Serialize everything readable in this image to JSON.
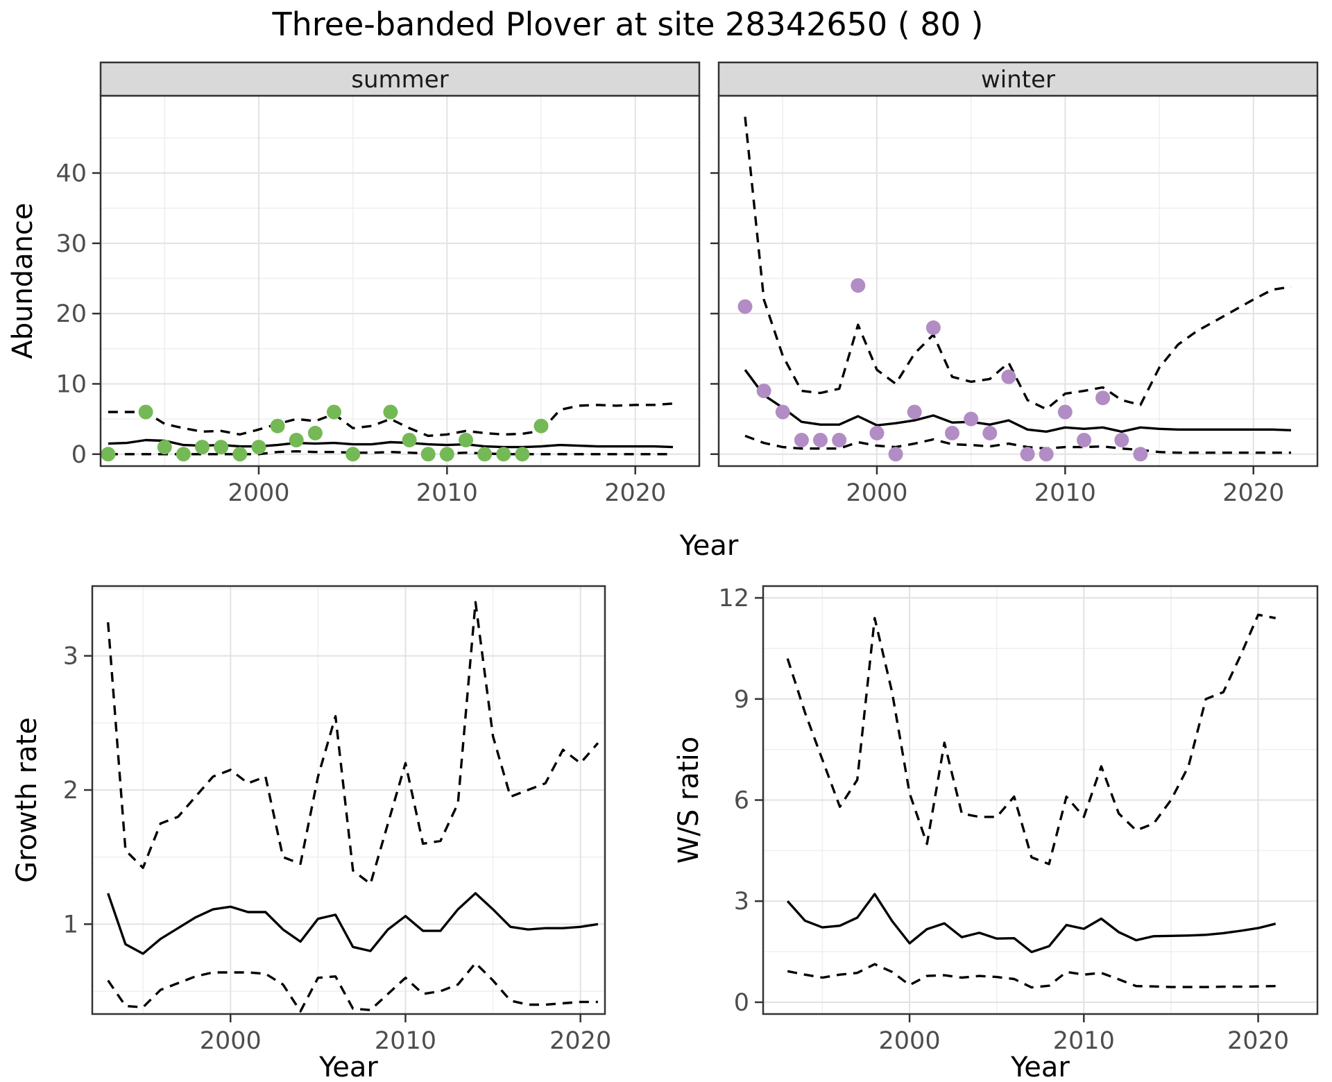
{
  "title": "Three-banded Plover at site 28342650 ( 80 )",
  "axes": {
    "y_top": "Abundance",
    "x_top": "Year",
    "y_growth": "Growth rate",
    "x_growth": "Year",
    "y_ws": "W/S ratio",
    "x_ws": "Year"
  },
  "facets": {
    "summer": "summer",
    "winter": "winter"
  },
  "colors": {
    "summer_point": "#74B956",
    "winter_point": "#B28CC4",
    "line": "#000000",
    "strip_fill": "#D9D9D9",
    "panel_border": "#333333",
    "grid_major": "#E2E2E2",
    "grid_minor": "#EFEFEF",
    "tick_label": "#4D4D4D",
    "tick_mark": "#333333"
  },
  "chart_data": [
    {
      "type": "line",
      "panel": "summer",
      "facet_label": "summer",
      "title": "",
      "xlabel": "Year",
      "ylabel": "Abundance",
      "xlim": [
        1991.6,
        2023.4
      ],
      "ylim": [
        -1.7,
        51.0
      ],
      "xticks": [
        2000,
        2010,
        2020
      ],
      "xticks_minor": [
        1995,
        2005,
        2015
      ],
      "yticks": [
        0,
        10,
        20,
        30,
        40
      ],
      "yticks_minor": [
        5,
        15,
        25,
        35,
        45
      ],
      "x": [
        1992,
        1993,
        1994,
        1995,
        1996,
        1997,
        1998,
        1999,
        2000,
        2001,
        2002,
        2003,
        2004,
        2005,
        2006,
        2007,
        2008,
        2009,
        2010,
        2011,
        2012,
        2013,
        2014,
        2015,
        2016,
        2017,
        2018,
        2019,
        2020,
        2021,
        2022
      ],
      "series": [
        {
          "name": "median",
          "style": "solid",
          "values": [
            1.5,
            1.6,
            2.0,
            1.9,
            1.3,
            1.2,
            1.3,
            1.1,
            1.1,
            1.3,
            1.6,
            1.5,
            1.6,
            1.4,
            1.4,
            1.7,
            1.6,
            1.4,
            1.3,
            1.4,
            1.1,
            1.0,
            1.0,
            1.1,
            1.3,
            1.2,
            1.1,
            1.1,
            1.1,
            1.1,
            1.0
          ]
        },
        {
          "name": "upper95",
          "style": "dashed",
          "values": [
            6.0,
            6.0,
            6.0,
            4.3,
            3.7,
            3.2,
            3.3,
            2.8,
            3.5,
            4.3,
            5.0,
            4.7,
            5.7,
            3.7,
            4.0,
            5.0,
            3.7,
            2.6,
            2.8,
            3.3,
            3.0,
            2.8,
            2.9,
            3.3,
            6.3,
            6.9,
            7.0,
            6.9,
            7.0,
            7.0,
            7.2
          ]
        },
        {
          "name": "lower95",
          "style": "dashed",
          "values": [
            0,
            0,
            0,
            0,
            0,
            0,
            0,
            0,
            0,
            0.3,
            0.4,
            0.3,
            0.3,
            0.2,
            0.2,
            0.3,
            0.2,
            0.1,
            0.1,
            0.2,
            0.1,
            0,
            0,
            0,
            0,
            0,
            0,
            0,
            0,
            0,
            0
          ]
        }
      ],
      "points": {
        "name": "observed counts (summer)",
        "color_key": "summer_point",
        "xy": [
          [
            1992,
            0
          ],
          [
            1994,
            6
          ],
          [
            1995,
            1
          ],
          [
            1996,
            0
          ],
          [
            1997,
            1
          ],
          [
            1998,
            1
          ],
          [
            1999,
            0
          ],
          [
            2000,
            1
          ],
          [
            2001,
            4
          ],
          [
            2002,
            2
          ],
          [
            2003,
            3
          ],
          [
            2004,
            6
          ],
          [
            2005,
            0
          ],
          [
            2007,
            6
          ],
          [
            2008,
            2
          ],
          [
            2009,
            0
          ],
          [
            2010,
            0
          ],
          [
            2011,
            2
          ],
          [
            2012,
            0
          ],
          [
            2013,
            0
          ],
          [
            2014,
            0
          ],
          [
            2015,
            4
          ]
        ]
      }
    },
    {
      "type": "line",
      "panel": "winter",
      "facet_label": "winter",
      "title": "",
      "xlabel": "Year",
      "ylabel": "Abundance",
      "xlim": [
        1991.6,
        2023.4
      ],
      "ylim": [
        -1.7,
        51.0
      ],
      "xticks": [
        2000,
        2010,
        2020
      ],
      "xticks_minor": [
        1995,
        2005,
        2015
      ],
      "yticks": [
        0,
        10,
        20,
        30,
        40
      ],
      "yticks_minor": [
        5,
        15,
        25,
        35,
        45
      ],
      "x": [
        1993,
        1994,
        1995,
        1996,
        1997,
        1998,
        1999,
        2000,
        2001,
        2002,
        2003,
        2004,
        2005,
        2006,
        2007,
        2008,
        2009,
        2010,
        2011,
        2012,
        2013,
        2014,
        2015,
        2016,
        2017,
        2018,
        2019,
        2020,
        2021,
        2022
      ],
      "series": [
        {
          "name": "median",
          "style": "solid",
          "values": [
            12,
            8.4,
            6.6,
            4.6,
            4.2,
            4.2,
            5.4,
            4.1,
            4.4,
            4.8,
            5.5,
            4.5,
            4.6,
            4.2,
            4.8,
            3.5,
            3.2,
            3.8,
            3.6,
            3.8,
            3.2,
            3.8,
            3.6,
            3.5,
            3.5,
            3.5,
            3.5,
            3.5,
            3.5,
            3.4
          ]
        },
        {
          "name": "upper95",
          "style": "dashed",
          "values": [
            48,
            22,
            14,
            9,
            8.7,
            9.3,
            18.4,
            12,
            10,
            14.3,
            17,
            11,
            10.3,
            10.7,
            13,
            7.7,
            6.4,
            8.6,
            9,
            9.5,
            7.7,
            7,
            12.3,
            15.6,
            17.5,
            19,
            20.5,
            22,
            23.4,
            23.8
          ]
        },
        {
          "name": "lower95",
          "style": "dashed",
          "values": [
            2.6,
            1.6,
            1.0,
            0.8,
            0.8,
            0.8,
            1.7,
            1.2,
            1.0,
            1.5,
            2.1,
            1.4,
            1.3,
            1.1,
            1.5,
            1.0,
            0.8,
            1.0,
            1.0,
            1.1,
            0.8,
            0.6,
            0.3,
            0.2,
            0.2,
            0.2,
            0.2,
            0.2,
            0.2,
            0.2
          ]
        }
      ],
      "points": {
        "name": "observed counts (winter)",
        "color_key": "winter_point",
        "xy": [
          [
            1993,
            21
          ],
          [
            1994,
            9
          ],
          [
            1995,
            6
          ],
          [
            1996,
            2
          ],
          [
            1997,
            2
          ],
          [
            1998,
            2
          ],
          [
            1999,
            24
          ],
          [
            2000,
            3
          ],
          [
            2001,
            0
          ],
          [
            2002,
            6
          ],
          [
            2003,
            18
          ],
          [
            2004,
            3
          ],
          [
            2005,
            5
          ],
          [
            2006,
            3
          ],
          [
            2007,
            11
          ],
          [
            2008,
            0
          ],
          [
            2009,
            0
          ],
          [
            2010,
            6
          ],
          [
            2011,
            2
          ],
          [
            2012,
            8
          ],
          [
            2013,
            2
          ],
          [
            2014,
            0
          ]
        ]
      }
    },
    {
      "type": "line",
      "panel": "growth",
      "facet_label": "",
      "title": "",
      "xlabel": "Year",
      "ylabel": "Growth rate",
      "xlim": [
        1992.1,
        2021.4
      ],
      "ylim": [
        0.33,
        3.52
      ],
      "xticks": [
        2000,
        2010,
        2020
      ],
      "xticks_minor": [
        1995,
        2005,
        2015
      ],
      "yticks": [
        1,
        2,
        3
      ],
      "yticks_minor": [
        0.5,
        1.5,
        2.5,
        3.5
      ],
      "x": [
        1993,
        1994,
        1995,
        1996,
        1997,
        1998,
        1999,
        2000,
        2001,
        2002,
        2003,
        2004,
        2005,
        2006,
        2007,
        2008,
        2009,
        2010,
        2011,
        2012,
        2013,
        2014,
        2015,
        2016,
        2017,
        2018,
        2019,
        2020,
        2021
      ],
      "series": [
        {
          "name": "median",
          "style": "solid",
          "values": [
            1.23,
            0.85,
            0.78,
            0.89,
            0.97,
            1.05,
            1.11,
            1.13,
            1.09,
            1.09,
            0.96,
            0.87,
            1.04,
            1.07,
            0.83,
            0.8,
            0.96,
            1.06,
            0.95,
            0.95,
            1.11,
            1.23,
            1.11,
            0.98,
            0.96,
            0.97,
            0.97,
            0.98,
            1.0
          ]
        },
        {
          "name": "upper95",
          "style": "dashed",
          "values": [
            3.25,
            1.55,
            1.42,
            1.75,
            1.8,
            1.95,
            2.1,
            2.15,
            2.05,
            2.1,
            1.5,
            1.45,
            2.1,
            2.55,
            1.4,
            1.3,
            1.75,
            2.2,
            1.6,
            1.62,
            1.9,
            3.4,
            2.4,
            1.95,
            2.0,
            2.05,
            2.3,
            2.2,
            2.35
          ]
        },
        {
          "name": "lower95",
          "style": "dashed",
          "values": [
            0.58,
            0.39,
            0.38,
            0.51,
            0.56,
            0.61,
            0.64,
            0.64,
            0.64,
            0.63,
            0.55,
            0.35,
            0.6,
            0.61,
            0.37,
            0.36,
            0.48,
            0.6,
            0.48,
            0.5,
            0.55,
            0.71,
            0.58,
            0.43,
            0.4,
            0.4,
            0.41,
            0.42,
            0.42
          ]
        }
      ]
    },
    {
      "type": "line",
      "panel": "ws",
      "facet_label": "",
      "title": "",
      "xlabel": "Year",
      "ylabel": "W/S ratio",
      "xlim": [
        1991.6,
        2023.4
      ],
      "ylim": [
        -0.35,
        12.35
      ],
      "xticks": [
        2000,
        2010,
        2020
      ],
      "xticks_minor": [
        1995,
        2005,
        2015
      ],
      "yticks": [
        0,
        3,
        6,
        9,
        12
      ],
      "yticks_minor": [
        1.5,
        4.5,
        7.5,
        10.5
      ],
      "x": [
        1993,
        1994,
        1995,
        1996,
        1997,
        1998,
        1999,
        2000,
        2001,
        2002,
        2003,
        2004,
        2005,
        2006,
        2007,
        2008,
        2009,
        2010,
        2011,
        2012,
        2013,
        2014,
        2015,
        2016,
        2017,
        2018,
        2019,
        2020,
        2021
      ],
      "series": [
        {
          "name": "median",
          "style": "solid",
          "values": [
            3.0,
            2.42,
            2.22,
            2.27,
            2.51,
            3.21,
            2.41,
            1.75,
            2.17,
            2.34,
            1.93,
            2.06,
            1.89,
            1.9,
            1.49,
            1.66,
            2.29,
            2.18,
            2.48,
            2.08,
            1.84,
            1.96,
            1.97,
            1.98,
            2.0,
            2.05,
            2.12,
            2.2,
            2.33
          ]
        },
        {
          "name": "upper95",
          "style": "dashed",
          "values": [
            10.2,
            8.6,
            7.2,
            5.8,
            6.6,
            11.4,
            9.2,
            6.2,
            4.7,
            7.7,
            5.6,
            5.5,
            5.5,
            6.1,
            4.3,
            4.1,
            6.1,
            5.5,
            7.0,
            5.6,
            5.1,
            5.3,
            6.0,
            7.0,
            9.0,
            9.2,
            10.3,
            11.5,
            11.4
          ]
        },
        {
          "name": "lower95",
          "style": "dashed",
          "values": [
            0.92,
            0.82,
            0.73,
            0.82,
            0.87,
            1.13,
            0.9,
            0.51,
            0.78,
            0.8,
            0.73,
            0.78,
            0.75,
            0.69,
            0.44,
            0.49,
            0.9,
            0.82,
            0.87,
            0.68,
            0.48,
            0.47,
            0.45,
            0.45,
            0.45,
            0.46,
            0.46,
            0.47,
            0.48
          ]
        }
      ]
    }
  ]
}
